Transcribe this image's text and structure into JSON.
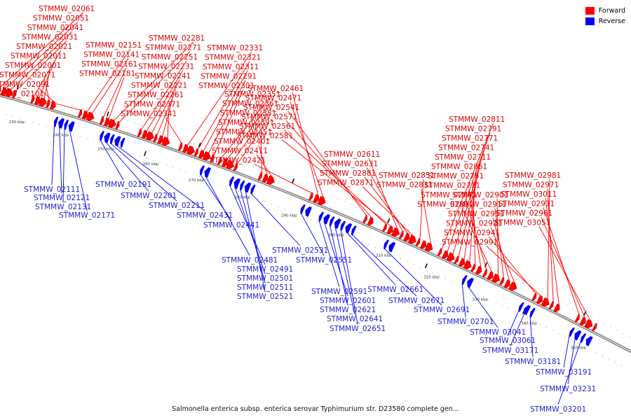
{
  "legend": [
    {
      "label": "Forward",
      "color": "#ff0000"
    },
    {
      "label": "Reverse",
      "color": "#0000ff"
    }
  ],
  "caption": "Salmonella enterica subsp. enterica serovar Typhimurium str. D23580 complete gen...",
  "colors": {
    "forward": "#ff0000",
    "reverse": "#0000ff",
    "backbone": "#888888",
    "label_forward": "#dd0000",
    "label_reverse": "#2222cc"
  },
  "ticks": [
    "230 kbp",
    "240 kbp",
    "250 kbp",
    "260 kbp",
    "270 kbp",
    "280 kbp",
    "290 kbp",
    "300 kbp",
    "310 kbp",
    "320 kbp",
    "330 kbp",
    "340 kbp",
    "350 kbp"
  ],
  "forward_genes": [
    "STMMW_02061",
    "STMMW_02051",
    "STMMW_02041",
    "STMMW_02031",
    "STMMW_02021",
    "STMMW_02011",
    "STMMW_02001",
    "STMMW_02071",
    "STMMW_02091",
    "STMMW_02101",
    "STMMW_02151",
    "STMMW_02141",
    "STMMW_02161",
    "STMMW_02181",
    "STMMW_02281",
    "STMMW_02271",
    "STMMW_02251",
    "STMMW_02231",
    "STMMW_02241",
    "STMMW_02221",
    "STMMW_02261",
    "STMMW_02371",
    "STMMW_02341",
    "STMMW_02331",
    "STMMW_02321",
    "STMMW_02311",
    "STMMW_02291",
    "STMMW_02301",
    "STMMW_02351",
    "STMMW_02361",
    "STMMW_02381",
    "STMMW_02391",
    "STMMW_02451",
    "STMMW_02401",
    "STMMW_02411",
    "STMMW_02421",
    "STMMW_02461",
    "STMMW_02471",
    "STMMW_02541",
    "STMMW_02571",
    "STMMW_02561",
    "STMMW_02581",
    "STMMW_02611",
    "STMMW_02631",
    "STMMW_02881",
    "STMMW_02871",
    "STMMW_02851",
    "STMMW_02831",
    "STMMW_02811",
    "STMMW_02791",
    "STMMW_02771",
    "STMMW_02741",
    "STMMW_02711",
    "STMMW_02861",
    "STMMW_02751",
    "STMMW_02731",
    "STMMW_02841",
    "STMMW_02891",
    "STMMW_02901",
    "STMMW_02911",
    "STMMW_02951",
    "STMMW_02921",
    "STMMW_02941",
    "STMMW_02991",
    "STMMW_02981",
    "STMMW_02971",
    "STMMW_03011",
    "STMMW_02931",
    "STMMW_02961",
    "STMMW_03051"
  ],
  "reverse_genes": [
    "STMMW_02111",
    "STMMW_02121",
    "STMMW_02131",
    "STMMW_02171",
    "STMMW_02191",
    "STMMW_02201",
    "STMMW_02211",
    "STMMW_02431",
    "STMMW_02441",
    "STMMW_02481",
    "STMMW_02491",
    "STMMW_02501",
    "STMMW_02511",
    "STMMW_02521",
    "STMMW_02531",
    "STMMW_02551",
    "STMMW_02591",
    "STMMW_02601",
    "STMMW_02621",
    "STMMW_02641",
    "STMMW_02651",
    "STMMW_02661",
    "STMMW_02671",
    "STMMW_02691",
    "STMMW_02701",
    "STMMW_03041",
    "STMMW_03061",
    "STMMW_03171",
    "STMMW_03181",
    "STMMW_03191",
    "STMMW_03231",
    "STMMW_03201"
  ]
}
